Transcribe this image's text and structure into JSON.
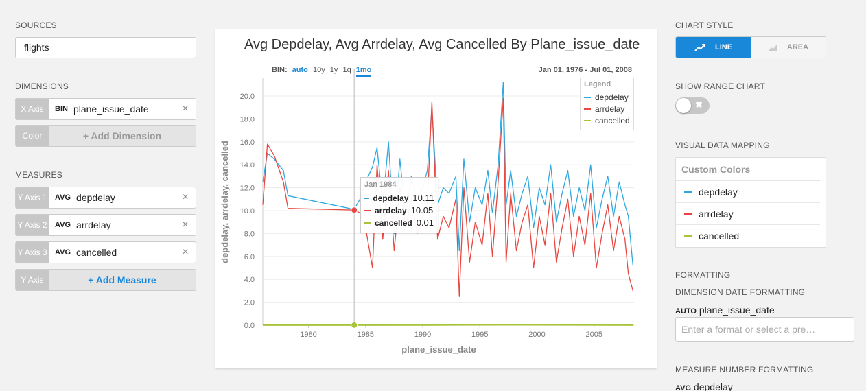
{
  "sources": {
    "label": "SOURCES",
    "value": "flights"
  },
  "dimensions": {
    "label": "DIMENSIONS",
    "items": [
      {
        "tag": "X Axis",
        "agg": "BIN",
        "field": "plane_issue_date",
        "close": "×"
      }
    ],
    "add": {
      "tag": "Color",
      "label": "+ Add Dimension"
    }
  },
  "measures": {
    "label": "MEASURES",
    "items": [
      {
        "tag": "Y Axis 1",
        "agg": "AVG",
        "field": "depdelay",
        "close": "×"
      },
      {
        "tag": "Y Axis 2",
        "agg": "AVG",
        "field": "arrdelay",
        "close": "×"
      },
      {
        "tag": "Y Axis 3",
        "agg": "AVG",
        "field": "cancelled",
        "close": "×"
      }
    ],
    "add": {
      "tag": "Y Axis",
      "label": "+ Add Measure"
    }
  },
  "chart": {
    "title": "Avg Depdelay, Avg Arrdelay, Avg Cancelled By Plane_issue_date",
    "bin_label": "BIN:",
    "bin_options": [
      "auto",
      "10y",
      "1y",
      "1q",
      "1mo"
    ],
    "bin_selected": "1mo",
    "range_start": "Jan 01, 1976",
    "range_sep": "-",
    "range_end": "Jul 01, 2008",
    "legend_title": "Legend",
    "tooltip": {
      "title": "Jan 1984",
      "rows": [
        {
          "name": "depdelay",
          "value": "10.11"
        },
        {
          "name": "arrdelay",
          "value": "10.05"
        },
        {
          "name": "cancelled",
          "value": "0.01"
        }
      ]
    }
  },
  "chart_data": {
    "type": "line",
    "title": "Avg Depdelay, Avg Arrdelay, Avg Cancelled By Plane_issue_date",
    "xlabel": "plane_issue_date",
    "ylabel": "depdelay, arrdelay, cancelled",
    "xlim": [
      1976,
      2008.5
    ],
    "ylim": [
      0,
      21.5
    ],
    "x_ticks": [
      "1980",
      "1985",
      "1990",
      "1995",
      "2000",
      "2005"
    ],
    "x_tick_values": [
      1980,
      1985,
      1990,
      1995,
      2000,
      2005
    ],
    "y_ticks": [
      "0.0",
      "2.0",
      "4.0",
      "6.0",
      "8.0",
      "10.0",
      "12.0",
      "14.0",
      "16.0",
      "18.0",
      "20.0"
    ],
    "y_tick_values": [
      0,
      2,
      4,
      6,
      8,
      10,
      12,
      14,
      16,
      18,
      20
    ],
    "legend_position": "top-right",
    "hover_x": 1984.0,
    "series": [
      {
        "name": "depdelay",
        "color": "#2fa8e0",
        "x": [
          1976.0,
          1976.4,
          1977.0,
          1977.8,
          1978.2,
          1984.0,
          1984.5,
          1985.0,
          1985.6,
          1986.0,
          1986.5,
          1987.0,
          1987.5,
          1988.0,
          1988.5,
          1989.0,
          1989.5,
          1990.0,
          1990.4,
          1990.8,
          1991.3,
          1991.8,
          1992.3,
          1992.9,
          1993.2,
          1993.6,
          1994.1,
          1994.6,
          1995.2,
          1995.7,
          1996.1,
          1996.6,
          1997.05,
          1997.3,
          1997.7,
          1998.2,
          1998.7,
          1999.2,
          1999.7,
          2000.2,
          2000.7,
          2001.2,
          2001.7,
          2002.2,
          2002.7,
          2003.2,
          2003.7,
          2004.2,
          2004.7,
          2005.2,
          2005.7,
          2006.2,
          2006.7,
          2007.2,
          2007.7,
          2008.0,
          2008.4
        ],
        "values": [
          12.5,
          15.0,
          14.5,
          13.5,
          11.3,
          10.11,
          11.0,
          12.5,
          13.8,
          15.5,
          10.5,
          16.0,
          8.0,
          14.5,
          9.5,
          13.0,
          11.0,
          12.0,
          13.5,
          19.0,
          10.5,
          12.0,
          11.5,
          13.0,
          6.5,
          14.5,
          9.0,
          12.0,
          10.5,
          13.5,
          9.8,
          14.0,
          21.2,
          10.5,
          13.5,
          9.5,
          11.5,
          13.0,
          8.5,
          12.0,
          10.5,
          14.0,
          9.0,
          11.5,
          13.5,
          9.5,
          12.0,
          10.0,
          14.0,
          8.5,
          11.0,
          13.0,
          9.5,
          12.5,
          10.5,
          9.5,
          5.2
        ]
      },
      {
        "name": "arrdelay",
        "color": "#e8463f",
        "x": [
          1976.0,
          1976.4,
          1977.0,
          1977.8,
          1978.2,
          1984.0,
          1984.5,
          1985.0,
          1985.6,
          1986.0,
          1986.5,
          1987.0,
          1987.5,
          1988.0,
          1988.5,
          1989.0,
          1989.5,
          1990.0,
          1990.4,
          1990.8,
          1991.3,
          1991.8,
          1992.3,
          1992.9,
          1993.2,
          1993.6,
          1994.1,
          1994.6,
          1995.2,
          1995.7,
          1996.1,
          1996.6,
          1997.05,
          1997.3,
          1997.7,
          1998.2,
          1998.7,
          1999.2,
          1999.7,
          2000.2,
          2000.7,
          2001.2,
          2001.7,
          2002.2,
          2002.7,
          2003.2,
          2003.7,
          2004.2,
          2004.7,
          2005.2,
          2005.7,
          2006.2,
          2006.7,
          2007.2,
          2007.7,
          2008.0,
          2008.4
        ],
        "values": [
          10.5,
          15.8,
          14.8,
          12.5,
          10.2,
          10.05,
          9.8,
          8.5,
          5.0,
          14.0,
          7.5,
          13.5,
          6.5,
          12.0,
          8.5,
          11.0,
          8.0,
          9.5,
          10.5,
          19.5,
          7.5,
          9.5,
          8.5,
          11.0,
          2.5,
          12.0,
          5.5,
          9.0,
          7.0,
          11.5,
          6.0,
          12.5,
          19.8,
          5.5,
          11.5,
          6.5,
          9.0,
          10.5,
          5.0,
          9.5,
          7.0,
          11.5,
          5.5,
          8.5,
          11.0,
          6.0,
          9.5,
          7.0,
          11.5,
          5.0,
          8.0,
          10.5,
          6.5,
          9.5,
          7.5,
          4.5,
          3.0
        ]
      },
      {
        "name": "cancelled",
        "color": "#a7c43b",
        "x": [
          1976.0,
          1984.0,
          1993.0,
          1997.0,
          2008.4
        ],
        "values": [
          0.01,
          0.01,
          0.02,
          0.03,
          0.01
        ]
      }
    ]
  },
  "chart_style": {
    "label": "CHART STYLE",
    "line": "LINE",
    "area": "AREA",
    "accent": "#1a88d8"
  },
  "range_chart": {
    "label": "SHOW RANGE CHART",
    "off_glyph": "✖"
  },
  "visual_mapping": {
    "label": "VISUAL DATA MAPPING",
    "title": "Custom Colors",
    "items": [
      {
        "name": "depdelay",
        "color": "#2fa8e0"
      },
      {
        "name": "arrdelay",
        "color": "#e8463f"
      },
      {
        "name": "cancelled",
        "color": "#a7c43b"
      }
    ]
  },
  "formatting": {
    "label": "FORMATTING",
    "date_label": "DIMENSION DATE FORMATTING",
    "date_agg": "AUTO",
    "date_field": "plane_issue_date",
    "placeholder": "Enter a format or select a pre…",
    "number_label": "MEASURE NUMBER FORMATTING",
    "number_agg": "AVG",
    "number_field": "depdelay"
  }
}
